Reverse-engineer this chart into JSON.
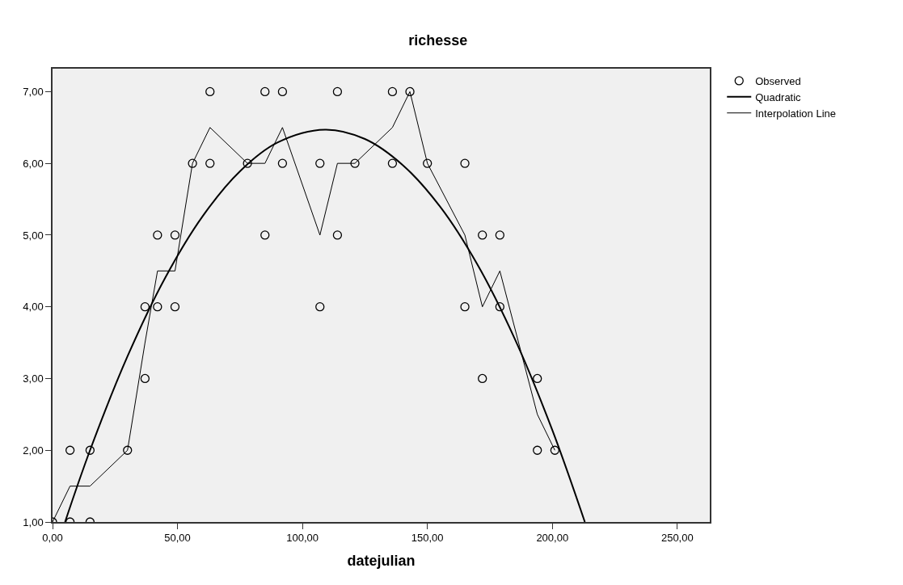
{
  "chart_data": {
    "type": "scatter",
    "title": "richesse",
    "xlabel": "datejulian",
    "xlim": [
      0,
      263
    ],
    "ylim": [
      1,
      7.32
    ],
    "xticks": [
      {
        "value": 0,
        "label": "0,00"
      },
      {
        "value": 50,
        "label": "50,00"
      },
      {
        "value": 100,
        "label": "100,00"
      },
      {
        "value": 150,
        "label": "150,00"
      },
      {
        "value": 200,
        "label": "200,00"
      },
      {
        "value": 250,
        "label": "250,00"
      }
    ],
    "yticks": [
      {
        "value": 1,
        "label": "1,00"
      },
      {
        "value": 2,
        "label": "2,00"
      },
      {
        "value": 3,
        "label": "3,00"
      },
      {
        "value": 4,
        "label": "4,00"
      },
      {
        "value": 5,
        "label": "5,00"
      },
      {
        "value": 6,
        "label": "6,00"
      },
      {
        "value": 7,
        "label": "7,00"
      }
    ],
    "grid": false,
    "legend": "top right",
    "series": [
      {
        "name": "Observed",
        "marker": "circle",
        "color": "#000000",
        "x": [
          0,
          7,
          15,
          7,
          15,
          30,
          37,
          37,
          42,
          49,
          107,
          42,
          49,
          85,
          114,
          56,
          63,
          78,
          92,
          107,
          121,
          136,
          150,
          165,
          63,
          85,
          92,
          114,
          136,
          143,
          172,
          179,
          165,
          179,
          172,
          194,
          194,
          201
        ],
        "values": [
          1,
          1,
          1,
          2,
          2,
          2,
          3,
          4,
          4,
          4,
          4,
          5,
          5,
          5,
          5,
          6,
          6,
          6,
          6,
          6,
          6,
          6,
          6,
          6,
          7,
          7,
          7,
          7,
          7,
          7,
          5,
          5,
          4,
          4,
          3,
          3,
          2,
          2
        ]
      },
      {
        "name": "Quadratic",
        "type": "line",
        "marker": "none",
        "color": "#000000",
        "x": [
          5,
          15,
          30,
          45,
          60,
          75,
          90,
          109,
          125,
          140,
          155,
          170,
          185,
          200,
          213
        ],
        "values": [
          1.0,
          2.0,
          3.31,
          4.4,
          5.26,
          5.89,
          6.29,
          6.47,
          6.34,
          5.98,
          5.4,
          4.59,
          3.55,
          2.28,
          1.0
        ]
      },
      {
        "name": "Interpolation Line",
        "type": "line",
        "marker": "none",
        "color": "#000000",
        "x": [
          0,
          7,
          15,
          30,
          37,
          42,
          49,
          56,
          63,
          78,
          85,
          92,
          107,
          114,
          121,
          136,
          143,
          150,
          165,
          172,
          179,
          194,
          201
        ],
        "values": [
          1,
          1.5,
          1.5,
          2,
          3.5,
          4.5,
          4.5,
          6,
          6.5,
          6,
          6,
          6.5,
          5,
          6,
          6,
          6.5,
          7,
          6,
          5,
          4,
          4.5,
          2.5,
          2
        ]
      }
    ]
  }
}
